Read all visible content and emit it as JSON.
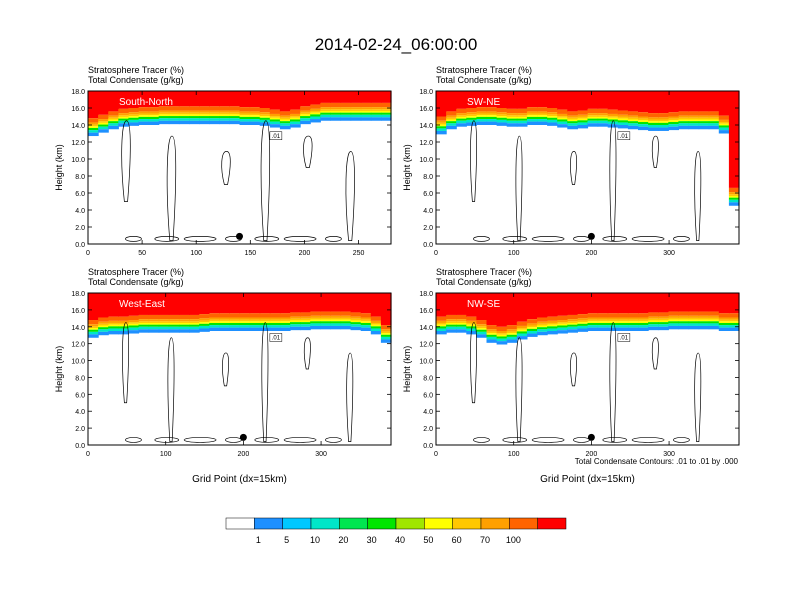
{
  "title": "2014-02-24_06:00:00",
  "footnote": "Total Condensate Contours: .01 to .01 by .000",
  "contour_label": ".01",
  "colorbar": {
    "colors": [
      "#ffffff",
      "#1e90ff",
      "#00c8ff",
      "#00e6c8",
      "#00e650",
      "#00e600",
      "#a0e600",
      "#ffff00",
      "#ffc800",
      "#ffa000",
      "#ff6400",
      "#ff0000"
    ],
    "labels": [
      "1",
      "5",
      "10",
      "20",
      "30",
      "40",
      "50",
      "60",
      "70",
      "100"
    ]
  },
  "chart_data": [
    {
      "type": "heatmap",
      "var_line1": "Stratosphere Tracer   (%)",
      "var_line2": "Total Condensate   (g/kg)",
      "section_label": "South-North",
      "ylabel": "Height (km)",
      "xlabel": "",
      "xlim": [
        0,
        280
      ],
      "ylim": [
        0,
        18
      ],
      "xticks": [
        0,
        50,
        100,
        150,
        200,
        250
      ],
      "yticks": [
        "0.0",
        "2.0",
        "4.0",
        "6.0",
        "8.0",
        "10.0",
        "12.0",
        "14.0",
        "16.0",
        "18.0"
      ],
      "tropopause_km": [
        14.2,
        14.6,
        15.0,
        15.3,
        15.4,
        15.5,
        15.5,
        15.6,
        15.6,
        15.6,
        15.6,
        15.6,
        15.6,
        15.6,
        15.6,
        15.5,
        15.5,
        15.4,
        15.2,
        15.0,
        15.2,
        15.6,
        15.8,
        16.0,
        16.0,
        16.0,
        16.0,
        16.0,
        16.0,
        16.0
      ],
      "dot_x": 140
    },
    {
      "type": "heatmap",
      "var_line1": "Stratosphere Tracer   (%)",
      "var_line2": "Total Condensate   (g/kg)",
      "section_label": "SW-NE",
      "ylabel": "Height (km)",
      "xlabel": "",
      "xlim": [
        0,
        390
      ],
      "ylim": [
        0,
        18
      ],
      "xticks": [
        0,
        100,
        200,
        300
      ],
      "yticks": [
        "0.0",
        "2.0",
        "4.0",
        "6.0",
        "8.0",
        "10.0",
        "12.0",
        "14.0",
        "16.0",
        "18.0"
      ],
      "tropopause_km": [
        14.4,
        15.0,
        15.3,
        15.4,
        15.5,
        15.5,
        15.4,
        15.3,
        15.3,
        15.5,
        15.5,
        15.4,
        15.2,
        15.0,
        15.1,
        15.3,
        15.3,
        15.2,
        15.1,
        15.0,
        14.9,
        14.8,
        14.8,
        14.9,
        15.0,
        15.0,
        15.0,
        15.0,
        14.5,
        6.0
      ],
      "dot_x": 200
    },
    {
      "type": "heatmap",
      "var_line1": "Stratosphere Tracer   (%)",
      "var_line2": "Total Condensate   (g/kg)",
      "section_label": "West-East",
      "ylabel": "Height (km)",
      "xlabel": "Grid Point (dx=15km)",
      "xlim": [
        0,
        390
      ],
      "ylim": [
        0,
        18
      ],
      "xticks": [
        0,
        100,
        200,
        300
      ],
      "yticks": [
        "0.0",
        "2.0",
        "4.0",
        "6.0",
        "8.0",
        "10.0",
        "12.0",
        "14.0",
        "16.0",
        "18.0"
      ],
      "tropopause_km": [
        14.2,
        14.5,
        14.6,
        14.6,
        14.7,
        14.8,
        14.8,
        14.8,
        14.8,
        14.8,
        14.8,
        14.9,
        15.0,
        15.0,
        15.0,
        15.0,
        15.0,
        15.0,
        15.0,
        15.0,
        15.1,
        15.1,
        15.2,
        15.2,
        15.2,
        15.2,
        15.1,
        15.0,
        14.6,
        13.6
      ],
      "dot_x": 200
    },
    {
      "type": "heatmap",
      "var_line1": "Stratosphere Tracer   (%)",
      "var_line2": "Total Condensate   (g/kg)",
      "section_label": "NW-SE",
      "ylabel": "Height (km)",
      "xlabel": "Grid Point (dx=15km)",
      "xlim": [
        0,
        390
      ],
      "ylim": [
        0,
        18
      ],
      "xticks": [
        0,
        100,
        200,
        300
      ],
      "yticks": [
        "0.0",
        "2.0",
        "4.0",
        "6.0",
        "8.0",
        "10.0",
        "12.0",
        "14.0",
        "16.0",
        "18.0"
      ],
      "tropopause_km": [
        14.6,
        14.8,
        14.8,
        14.6,
        14.2,
        13.6,
        13.4,
        13.6,
        14.0,
        14.3,
        14.5,
        14.6,
        14.7,
        14.8,
        14.9,
        15.0,
        15.0,
        15.0,
        15.0,
        15.0,
        15.0,
        15.1,
        15.1,
        15.2,
        15.2,
        15.2,
        15.2,
        15.2,
        15.0,
        15.0
      ],
      "dot_x": 200
    }
  ]
}
